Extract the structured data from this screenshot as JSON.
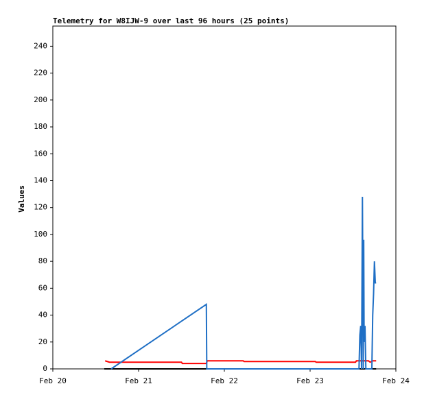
{
  "chart_data": {
    "type": "line",
    "title": "Telemetry for W8IJW-9 over last 96 hours (25 points)",
    "y_label": "Values",
    "xlim": [
      0,
      4
    ],
    "xticks": [
      {
        "value": 0,
        "label": "Feb 20"
      },
      {
        "value": 1,
        "label": "Feb 21"
      },
      {
        "value": 2,
        "label": "Feb 22"
      },
      {
        "value": 3,
        "label": "Feb 23"
      },
      {
        "value": 4,
        "label": "Feb 24"
      }
    ],
    "ylim": [
      0,
      255
    ],
    "yticks": [
      0,
      20,
      40,
      60,
      80,
      100,
      120,
      140,
      160,
      180,
      200,
      220,
      240
    ],
    "grid": false,
    "series": [
      {
        "color": "#000000",
        "x": [
          0.6,
          3.77
        ],
        "values": [
          0,
          0
        ]
      },
      {
        "color": "#ff0000",
        "x": [
          0.61,
          0.66,
          1.5,
          1.51,
          1.79,
          1.8,
          2.22,
          2.23,
          3.06,
          3.07,
          3.53,
          3.54,
          3.68,
          3.7,
          3.73,
          3.77
        ],
        "values": [
          6,
          5,
          5,
          4,
          4,
          6,
          6,
          5.5,
          5.5,
          5,
          5,
          6,
          6,
          5,
          6,
          6
        ]
      },
      {
        "color": "#1f6fc5",
        "x": [
          0.68,
          1.79,
          1.795,
          3.57,
          3.58,
          3.59,
          3.6,
          3.61,
          3.62,
          3.625,
          3.63,
          3.64,
          3.65,
          3.72,
          3.73,
          3.74,
          3.75,
          3.76,
          3.77
        ],
        "values": [
          0,
          48,
          0,
          0,
          25,
          32,
          0,
          128,
          0,
          96,
          20,
          32,
          0,
          0,
          40,
          56,
          80,
          64,
          64
        ]
      }
    ]
  }
}
